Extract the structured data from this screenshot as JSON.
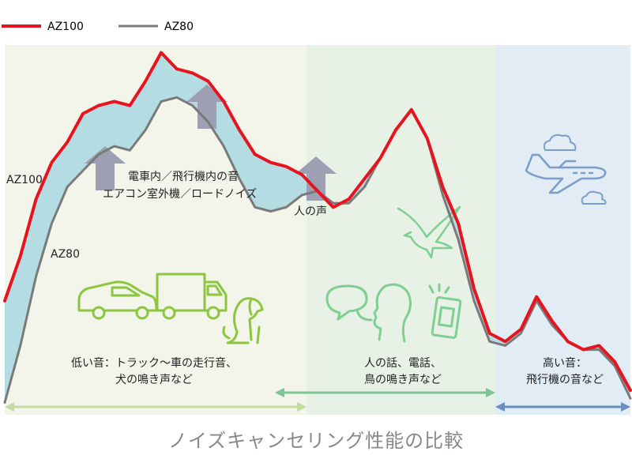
{
  "chart_data": {
    "type": "line",
    "title": "ノイズキャンセリング性能の比較",
    "x": [
      0,
      1,
      2,
      3,
      4,
      5,
      6,
      7,
      8,
      9,
      10,
      11,
      12,
      13,
      14,
      15,
      16,
      17,
      18,
      19,
      20,
      21,
      22,
      23,
      24,
      25,
      26,
      27,
      28,
      29,
      30,
      31,
      32,
      33,
      34,
      35,
      36,
      37,
      38,
      39,
      40
    ],
    "series": [
      {
        "name": "AZ100",
        "color": "#e6141e",
        "values": [
          28,
          39,
          53,
          62,
          67,
          74,
          76,
          77,
          76,
          82,
          89,
          85,
          84,
          82,
          77,
          70,
          64,
          62,
          61,
          59,
          55,
          51,
          53,
          58,
          63,
          70,
          75,
          68,
          56,
          47,
          31,
          20,
          18,
          21,
          29,
          23,
          18,
          16,
          17,
          13,
          6
        ]
      },
      {
        "name": "AZ80",
        "color": "#7a7a7a",
        "values": [
          3,
          17,
          34,
          47,
          56,
          60,
          64,
          66,
          65,
          70,
          77,
          78,
          76,
          72,
          66,
          58,
          51,
          50,
          51,
          54,
          55,
          52,
          52,
          56,
          63,
          70,
          75,
          68,
          54,
          43,
          28,
          18,
          17,
          20,
          28,
          22,
          18,
          16,
          16,
          12,
          4
        ]
      }
    ],
    "ylim": [
      0,
      100
    ],
    "legend_position": "top-left",
    "band_fill": "#b4dde3",
    "zones": [
      {
        "caption_lines": [
          "低い音：トラック〜車の走行音、",
          "犬の鳴き声など"
        ],
        "bg": "#f3f4ea",
        "arrow_color": "#c3dca0"
      },
      {
        "caption_lines": [
          "人の話、電話、",
          "鳥の鳴き声など"
        ],
        "bg": "#e8f1e6",
        "arrow_color": "#7dc594"
      },
      {
        "caption_lines": [
          "高い音：",
          "飛行機の音など"
        ],
        "bg": "#e2ecf5",
        "arrow_color": "#6a90c2"
      }
    ],
    "annotations": {
      "low_sources": [
        "電車内／飛行機内の音",
        "エアコン室外機／ロードノイズ"
      ],
      "voice": "人の声",
      "az100_label": "AZ100",
      "az80_label": "AZ80"
    },
    "arrow_color": "#9e9fb2",
    "icon_colors": {
      "low": "#8cc63f",
      "mid": "#7fcf92",
      "high": "#7b9ec9"
    },
    "icons": [
      "car-icon",
      "truck-icon",
      "dog-icon",
      "bird-icon",
      "speech-bubbles-icon",
      "speaking-head-icon",
      "smartphone-icon",
      "airplane-icon",
      "cloud-icon"
    ]
  }
}
